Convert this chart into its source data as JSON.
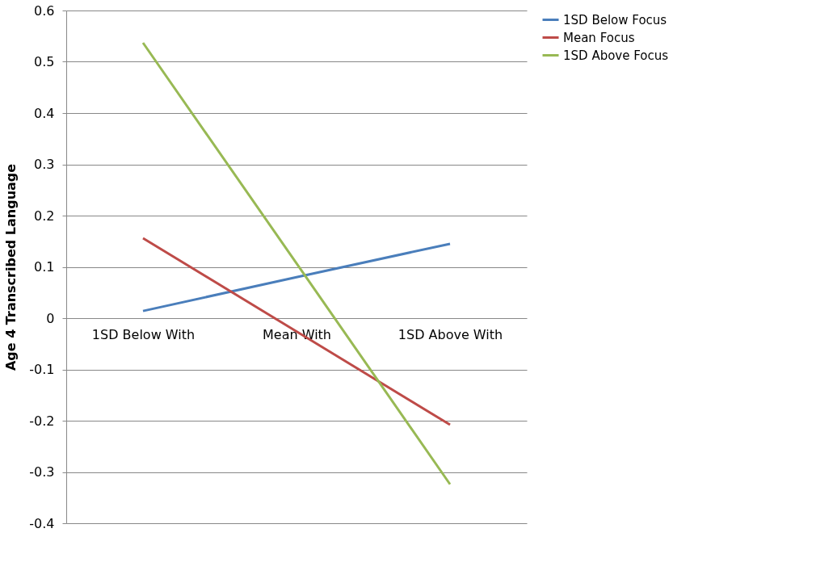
{
  "chart_data": {
    "type": "line",
    "ylabel": "Age 4 Transcribed Language",
    "categories": [
      "1SD Below With",
      "Mean With",
      "1SD Above With"
    ],
    "series": [
      {
        "name": "1SD Below Focus",
        "color": "#4a7ebb",
        "values": [
          0.014,
          0.08,
          0.145
        ]
      },
      {
        "name": "Mean Focus",
        "color": "#be4b48",
        "values": [
          0.156,
          -0.026,
          -0.208
        ]
      },
      {
        "name": "1SD Above Focus",
        "color": "#98b954",
        "values": [
          0.537,
          0.107,
          -0.324
        ]
      }
    ],
    "ylim": [
      -0.4,
      0.6
    ],
    "yticks": [
      -0.4,
      -0.3,
      -0.2,
      -0.1,
      0,
      0.1,
      0.2,
      0.3,
      0.4,
      0.5,
      0.6
    ],
    "grid": "y",
    "legend": "right",
    "marker": "none",
    "line_style": "solid"
  }
}
